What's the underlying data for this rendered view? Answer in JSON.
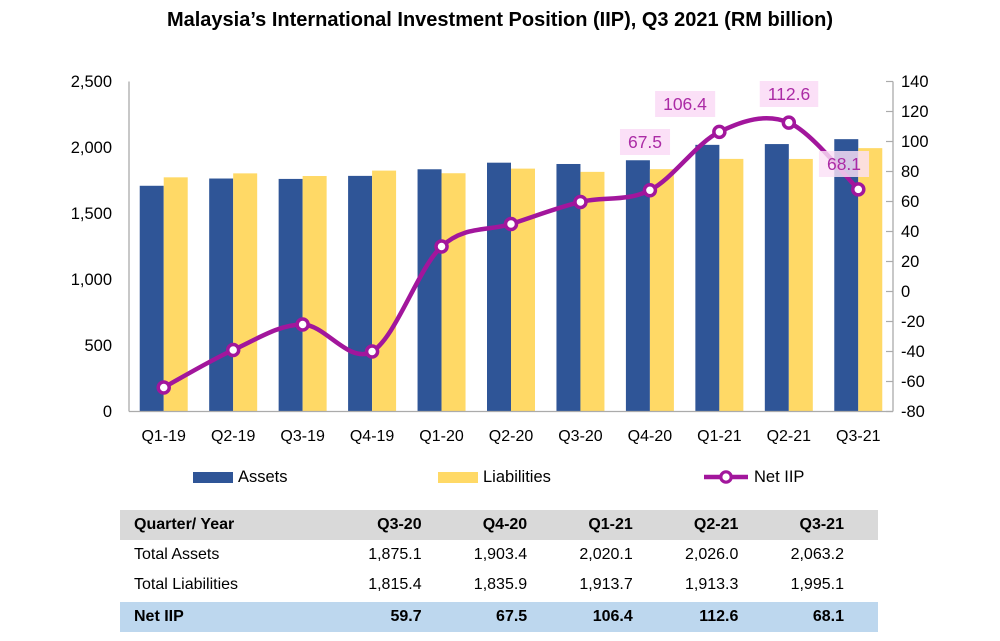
{
  "title": "Malaysia’s International Investment Position (IIP), Q3 2021 (RM billion)",
  "colors": {
    "assets_bar": "#2F5597",
    "liabilities_bar": "#FFD966",
    "net_iip_line": "#A2169C",
    "point_label_bg": "#FBE0F7",
    "point_label_text": "#AB2BA5",
    "table_header_bg": "#D9D9D9",
    "net_iip_row_bg": "#BDD7EE",
    "axis_line": "#ABABAB"
  },
  "chart_data": {
    "type": "combo",
    "title": "Malaysia’s International Investment Position (IIP), Q3 2021 (RM billion)",
    "categories": [
      "Q1-19",
      "Q2-19",
      "Q3-19",
      "Q4-19",
      "Q1-20",
      "Q2-20",
      "Q3-20",
      "Q4-20",
      "Q1-21",
      "Q2-21",
      "Q3-21"
    ],
    "series": [
      {
        "name": "Assets",
        "type": "bar",
        "axis": "left",
        "color": "#2F5597",
        "values": [
          1710,
          1765,
          1762,
          1785,
          1835,
          1885,
          1875.1,
          1903.4,
          2020.1,
          2026.0,
          2063.2
        ]
      },
      {
        "name": "Liabilities",
        "type": "bar",
        "axis": "left",
        "color": "#FFD966",
        "values": [
          1774,
          1804,
          1784,
          1825,
          1805,
          1840,
          1815.4,
          1835.9,
          1913.7,
          1913.3,
          1995.1
        ]
      },
      {
        "name": "Net IIP",
        "type": "line",
        "axis": "right",
        "color": "#A2169C",
        "values": [
          -64,
          -39,
          -22,
          -40,
          30,
          45,
          59.7,
          67.5,
          106.4,
          112.6,
          68.1
        ]
      }
    ],
    "point_labels": [
      {
        "category": "Q4-20",
        "text": "67.5"
      },
      {
        "category": "Q1-21",
        "text": "106.4"
      },
      {
        "category": "Q2-21",
        "text": "112.6"
      },
      {
        "category": "Q3-21",
        "text": "68.1"
      }
    ],
    "left_axis": {
      "min": 0,
      "max": 2500,
      "step": 500,
      "tick_labels": [
        "0",
        "500",
        "1,000",
        "1,500",
        "2,000",
        "2,500"
      ]
    },
    "right_axis": {
      "min": -80,
      "max": 140,
      "step": 20,
      "tick_labels": [
        "-80",
        "-60",
        "-40",
        "-20",
        "0",
        "20",
        "40",
        "60",
        "80",
        "100",
        "120",
        "140"
      ]
    },
    "legend_position": "bottom",
    "grid": "off"
  },
  "table": {
    "header": [
      "Quarter/ Year",
      "Q3-20",
      "Q4-20",
      "Q1-21",
      "Q2-21",
      "Q3-21"
    ],
    "rows": [
      {
        "label": "Total Assets",
        "values": [
          "1,875.1",
          "1,903.4",
          "2,020.1",
          "2,026.0",
          "2,063.2"
        ]
      },
      {
        "label": "Total Liabilities",
        "values": [
          "1,815.4",
          "1,835.9",
          "1,913.7",
          "1,913.3",
          "1,995.1"
        ]
      }
    ],
    "footer": {
      "label": "Net IIP",
      "values": [
        "59.7",
        "67.5",
        "106.4",
        "112.6",
        "68.1"
      ]
    }
  }
}
